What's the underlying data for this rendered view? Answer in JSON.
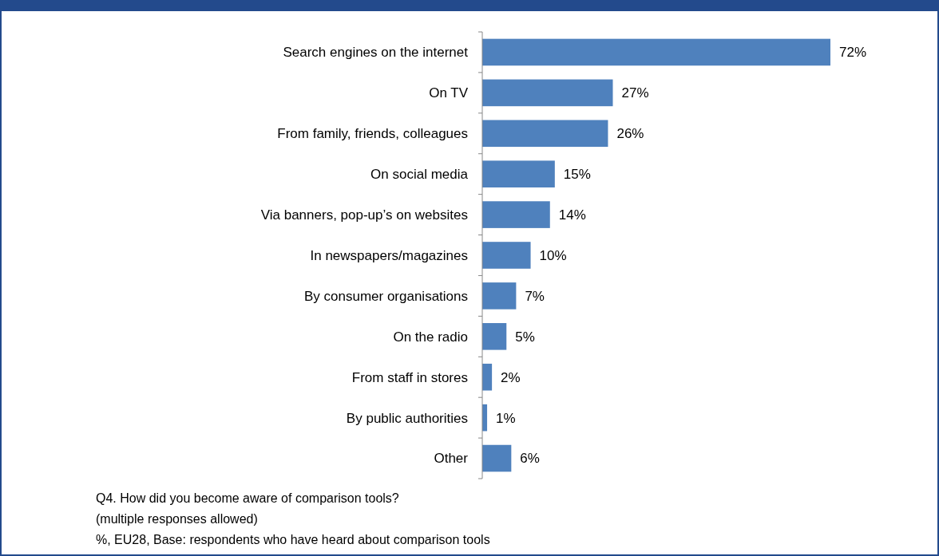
{
  "chart_data": {
    "type": "bar",
    "orientation": "horizontal",
    "categories": [
      "Search engines on the internet",
      "On TV",
      "From family, friends, colleagues",
      "On social media",
      "Via banners, pop-up’s on websites",
      "In newspapers/magazines",
      "By consumer organisations",
      "On the radio",
      "From staff in stores",
      "By public authorities",
      "Other"
    ],
    "values": [
      72,
      27,
      26,
      15,
      14,
      10,
      7,
      5,
      2,
      1,
      6
    ],
    "value_labels": [
      "72%",
      "27%",
      "26%",
      "15%",
      "14%",
      "10%",
      "7%",
      "5%",
      "2%",
      "1%",
      "6%"
    ],
    "color": "#4f81bd",
    "annotations": [
      "Q4. How did you become aware of comparison tools?",
      "(multiple responses allowed)",
      "%, EU28, Base: respondents who have heard about comparison tools"
    ]
  }
}
